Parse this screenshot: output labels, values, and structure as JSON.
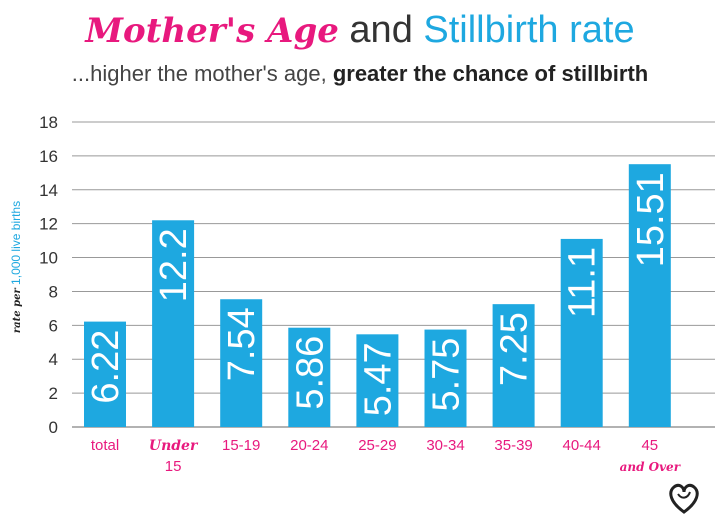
{
  "title": {
    "part1": "Mother's Age",
    "part2": "and",
    "part3": "Stillbirth rate"
  },
  "subtitle": {
    "part1": "...higher the mother's age,",
    "part2": "greater the chance of stillbirth"
  },
  "ylabel": {
    "part1": "rate per",
    "part2": "1,000 live births"
  },
  "colors": {
    "bar": "#1ea8e0",
    "pink": "#e8197e",
    "grid": "#999999",
    "dark": "#333333"
  },
  "chart_data": {
    "type": "bar",
    "categories": [
      "total",
      "Under 15",
      "15-19",
      "20-24",
      "25-29",
      "30-34",
      "35-39",
      "40-44",
      "45 and Over"
    ],
    "values": [
      6.22,
      12.2,
      7.54,
      5.86,
      5.47,
      5.75,
      7.25,
      11.1,
      15.51
    ],
    "value_labels": [
      "6.22",
      "12.2",
      "7.54",
      "5.86",
      "5.47",
      "5.75",
      "7.25",
      "11.1",
      "15.51"
    ],
    "category_labels": [
      {
        "line1": "total",
        "line2": "",
        "style": "normal"
      },
      {
        "line1": "Under",
        "line2": "15",
        "style": "script"
      },
      {
        "line1": "15-19",
        "line2": "",
        "style": "normal"
      },
      {
        "line1": "20-24",
        "line2": "",
        "style": "normal"
      },
      {
        "line1": "25-29",
        "line2": "",
        "style": "normal"
      },
      {
        "line1": "30-34",
        "line2": "",
        "style": "normal"
      },
      {
        "line1": "35-39",
        "line2": "",
        "style": "normal"
      },
      {
        "line1": "40-44",
        "line2": "",
        "style": "normal"
      },
      {
        "line1": "45",
        "line2": "and Over",
        "style": "mixed"
      }
    ],
    "y_ticks": [
      "0",
      "2",
      "4",
      "6",
      "8",
      "10",
      "12",
      "14",
      "16",
      "18"
    ],
    "ylim": [
      0,
      18
    ],
    "grid": true,
    "legend": "none"
  }
}
